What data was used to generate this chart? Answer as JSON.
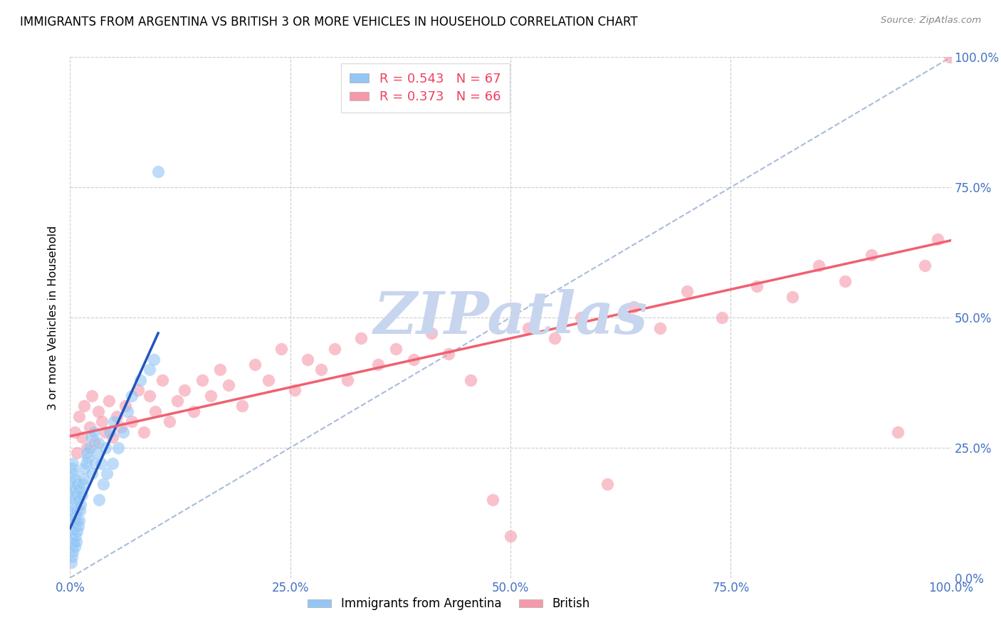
{
  "title": "IMMIGRANTS FROM ARGENTINA VS BRITISH 3 OR MORE VEHICLES IN HOUSEHOLD CORRELATION CHART",
  "source": "Source: ZipAtlas.com",
  "ylabel": "3 or more Vehicles in Household",
  "xlim": [
    0.0,
    1.0
  ],
  "ylim": [
    0.0,
    1.0
  ],
  "xticks": [
    0.0,
    0.25,
    0.5,
    0.75,
    1.0
  ],
  "yticks": [
    0.0,
    0.25,
    0.5,
    0.75,
    1.0
  ],
  "xtick_labels": [
    "0.0%",
    "25.0%",
    "50.0%",
    "75.0%",
    "100.0%"
  ],
  "ytick_labels": [
    "0.0%",
    "25.0%",
    "50.0%",
    "75.0%",
    "100.0%"
  ],
  "R1": "0.543",
  "N1": "67",
  "R2": "0.373",
  "N2": "66",
  "color_argentina": "#93c6f5",
  "color_british": "#f599aa",
  "color_argentina_line": "#2255bb",
  "color_british_line": "#f06070",
  "color_diag": "#aabbdd",
  "legend1_label": "Immigrants from Argentina",
  "legend2_label": "British",
  "watermark": "ZIPatlas",
  "watermark_color": "#c8d5ee",
  "tick_label_color": "#4472c4",
  "argentina_x": [
    0.001,
    0.001,
    0.001,
    0.001,
    0.002,
    0.002,
    0.002,
    0.002,
    0.002,
    0.003,
    0.003,
    0.003,
    0.003,
    0.003,
    0.004,
    0.004,
    0.004,
    0.004,
    0.005,
    0.005,
    0.005,
    0.005,
    0.006,
    0.006,
    0.006,
    0.007,
    0.007,
    0.007,
    0.008,
    0.008,
    0.008,
    0.009,
    0.009,
    0.01,
    0.01,
    0.011,
    0.012,
    0.013,
    0.014,
    0.015,
    0.016,
    0.018,
    0.019,
    0.02,
    0.022,
    0.024,
    0.025,
    0.027,
    0.028,
    0.03,
    0.032,
    0.033,
    0.035,
    0.038,
    0.04,
    0.042,
    0.045,
    0.048,
    0.05,
    0.055,
    0.06,
    0.065,
    0.07,
    0.08,
    0.09,
    0.095,
    0.1
  ],
  "argentina_y": [
    0.03,
    0.06,
    0.1,
    0.14,
    0.04,
    0.08,
    0.12,
    0.17,
    0.21,
    0.05,
    0.09,
    0.13,
    0.18,
    0.22,
    0.07,
    0.11,
    0.16,
    0.2,
    0.06,
    0.1,
    0.15,
    0.19,
    0.08,
    0.12,
    0.17,
    0.07,
    0.11,
    0.16,
    0.09,
    0.13,
    0.18,
    0.1,
    0.15,
    0.11,
    0.17,
    0.13,
    0.14,
    0.16,
    0.18,
    0.19,
    0.21,
    0.22,
    0.24,
    0.23,
    0.25,
    0.27,
    0.2,
    0.28,
    0.22,
    0.24,
    0.26,
    0.15,
    0.22,
    0.18,
    0.25,
    0.2,
    0.28,
    0.22,
    0.3,
    0.25,
    0.28,
    0.32,
    0.35,
    0.38,
    0.4,
    0.42,
    0.78
  ],
  "british_x": [
    0.005,
    0.008,
    0.01,
    0.013,
    0.016,
    0.019,
    0.022,
    0.025,
    0.028,
    0.032,
    0.036,
    0.04,
    0.044,
    0.048,
    0.053,
    0.058,
    0.063,
    0.07,
    0.077,
    0.084,
    0.09,
    0.097,
    0.105,
    0.113,
    0.122,
    0.13,
    0.14,
    0.15,
    0.16,
    0.17,
    0.18,
    0.195,
    0.21,
    0.225,
    0.24,
    0.255,
    0.27,
    0.285,
    0.3,
    0.315,
    0.33,
    0.35,
    0.37,
    0.39,
    0.41,
    0.43,
    0.455,
    0.48,
    0.5,
    0.52,
    0.55,
    0.58,
    0.61,
    0.64,
    0.67,
    0.7,
    0.74,
    0.78,
    0.82,
    0.85,
    0.88,
    0.91,
    0.94,
    0.97,
    0.985,
    0.999
  ],
  "british_y": [
    0.28,
    0.24,
    0.31,
    0.27,
    0.33,
    0.25,
    0.29,
    0.35,
    0.26,
    0.32,
    0.3,
    0.28,
    0.34,
    0.27,
    0.31,
    0.29,
    0.33,
    0.3,
    0.36,
    0.28,
    0.35,
    0.32,
    0.38,
    0.3,
    0.34,
    0.36,
    0.32,
    0.38,
    0.35,
    0.4,
    0.37,
    0.33,
    0.41,
    0.38,
    0.44,
    0.36,
    0.42,
    0.4,
    0.44,
    0.38,
    0.46,
    0.41,
    0.44,
    0.42,
    0.47,
    0.43,
    0.38,
    0.15,
    0.08,
    0.48,
    0.46,
    0.5,
    0.18,
    0.52,
    0.48,
    0.55,
    0.5,
    0.56,
    0.54,
    0.6,
    0.57,
    0.62,
    0.28,
    0.6,
    0.65,
    1.0
  ],
  "argentina_line_x0": 0.0,
  "argentina_line_x1": 0.1,
  "argentina_line_y0": 0.095,
  "argentina_line_y1": 0.47,
  "british_line_x0": 0.0,
  "british_line_x1": 1.0,
  "british_line_y0": 0.272,
  "british_line_y1": 0.648,
  "diag_line_x0": 0.0,
  "diag_line_x1": 1.0,
  "diag_line_y0": 0.0,
  "diag_line_y1": 1.0
}
